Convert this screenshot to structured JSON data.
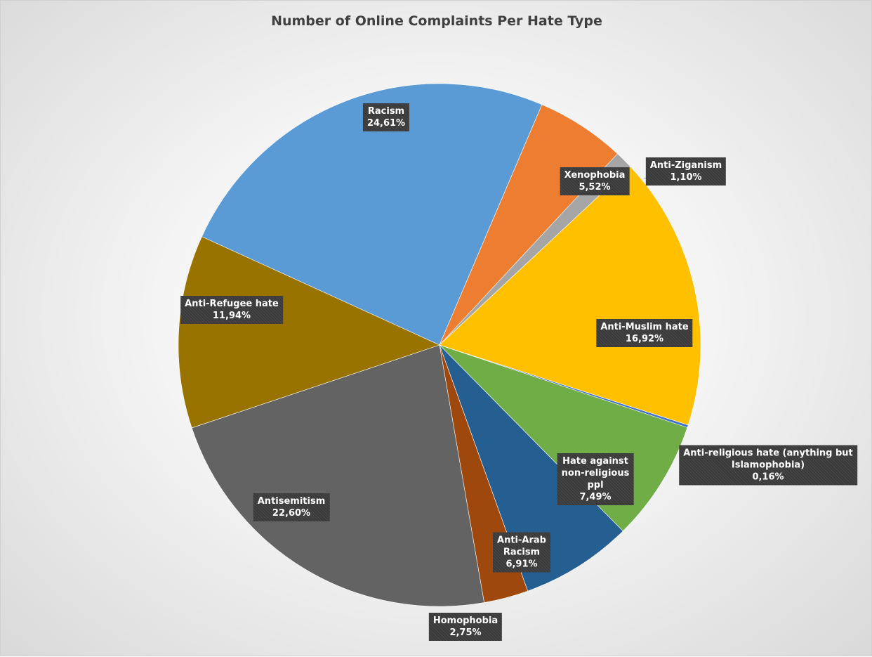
{
  "chart_data": {
    "type": "pie",
    "title": "Number of Online Complaints Per Hate Type",
    "slices": [
      {
        "name": "Racism",
        "label_lines": [
          "Racism"
        ],
        "value": 24.61,
        "value_label": "24,61%",
        "color": "#5b9bd5"
      },
      {
        "name": "Xenophobia",
        "label_lines": [
          "Xenophobia"
        ],
        "value": 5.52,
        "value_label": "5,52%",
        "color": "#ed7d31"
      },
      {
        "name": "Anti-Ziganism",
        "label_lines": [
          "Anti-Ziganism"
        ],
        "value": 1.1,
        "value_label": "1,10%",
        "color": "#a5a5a5"
      },
      {
        "name": "Anti-Muslim hate",
        "label_lines": [
          "Anti-Muslim hate"
        ],
        "value": 16.92,
        "value_label": "16,92%",
        "color": "#ffc000"
      },
      {
        "name": "Anti-religious hate (anything but Islamophobia)",
        "label_lines": [
          "Anti-religious hate (anything but",
          "Islamophobia)"
        ],
        "value": 0.16,
        "value_label": "0,16%",
        "color": "#4472c4"
      },
      {
        "name": "Hate against non-religious ppl",
        "label_lines": [
          "Hate against",
          "non-religious",
          "ppl"
        ],
        "value": 7.49,
        "value_label": "7,49%",
        "color": "#70ad47"
      },
      {
        "name": "Anti-Arab Racism",
        "label_lines": [
          "Anti-Arab",
          "Racism"
        ],
        "value": 6.91,
        "value_label": "6,91%",
        "color": "#255e91"
      },
      {
        "name": "Homophobia",
        "label_lines": [
          "Homophobia"
        ],
        "value": 2.75,
        "value_label": "2,75%",
        "color": "#9e480e"
      },
      {
        "name": "Antisemitism",
        "label_lines": [
          "Antisemitism"
        ],
        "value": 22.6,
        "value_label": "22,60%",
        "color": "#636363"
      },
      {
        "name": "Anti-Refugee hate",
        "label_lines": [
          "Anti-Refugee hate"
        ],
        "value": 11.94,
        "value_label": "11,94%",
        "color": "#997300"
      }
    ]
  }
}
